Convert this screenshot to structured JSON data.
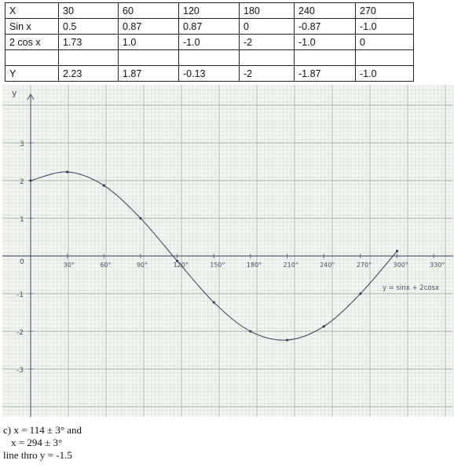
{
  "table": {
    "rows": [
      [
        "X",
        "30",
        "60",
        "120",
        "180",
        "240",
        "270"
      ],
      [
        "Sin x",
        "0.5",
        "0.87",
        "0.87",
        "0",
        "-0.87",
        "-1.0"
      ],
      [
        "2 cos x",
        "1.73",
        "1.0",
        "-1.0",
        "-2",
        "-1.0",
        "0"
      ],
      [
        "",
        "",
        "",
        "",
        "",
        "",
        ""
      ],
      [
        "Y",
        "2.23",
        "1.87",
        "-0.13",
        "-2",
        "-1.87",
        "-1.0"
      ]
    ]
  },
  "chart_data": {
    "type": "line",
    "xlabel": "",
    "ylabel": "y",
    "x_tick_labels": [
      "30°",
      "60°",
      "90°",
      "120°",
      "150°",
      "180°",
      "210°",
      "240°",
      "270°",
      "300°",
      "330°"
    ],
    "y_tick_labels": [
      "3",
      "2",
      "1",
      "0",
      "-1",
      "-2",
      "-3"
    ],
    "xlim": [
      0,
      350
    ],
    "ylim": [
      -3.8,
      4.6
    ],
    "grid": true,
    "series": [
      {
        "name": "y = sinx + 2cosx",
        "x": [
          0,
          30,
          60,
          90,
          120,
          150,
          180,
          210,
          240,
          270,
          300
        ],
        "y": [
          2.0,
          2.23,
          1.87,
          1.0,
          -0.13,
          -1.23,
          -2.0,
          -2.23,
          -1.87,
          -1.0,
          0.13
        ]
      }
    ],
    "curve_label": "y = sinx + 2cosx"
  },
  "notes": {
    "line1": "c) x = 114 ± 3° and",
    "line2": "x = 294 ± 3°",
    "line3": "line thro y = -1.5"
  }
}
